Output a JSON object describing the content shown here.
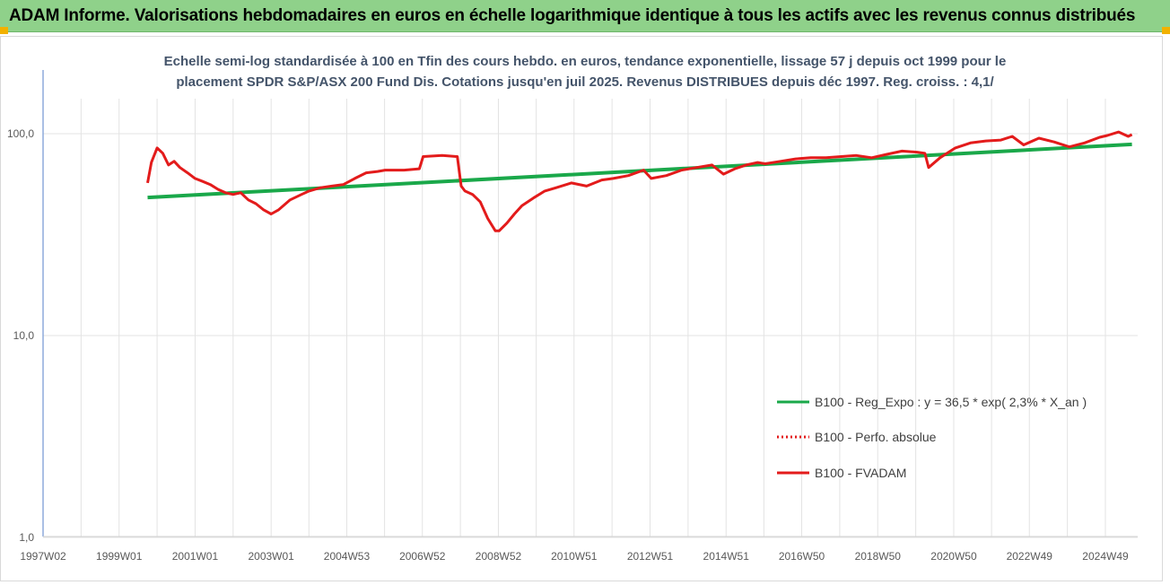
{
  "header": {
    "title": "ADAM Informe. Valorisations hebdomadaires en euros en échelle logarithmique identique à tous les actifs avec les revenus connus distribués"
  },
  "chart_data": {
    "type": "line",
    "title_lines": [
      "Echelle semi-log standardisée à 100 en Tfin des cours hebdo. en euros, tendance exponentielle, lissage 57 j depuis oct 1999 pour le",
      "placement SPDR S&P/ASX 200 Fund Dis. Cotations jusqu'en juil 2025. Revenus DISTRIBUES depuis déc 1997. Reg. croiss. : 4,1/"
    ],
    "y_scale": "log",
    "ylim": [
      1,
      200
    ],
    "y_ticks": [
      "1,0",
      "10,0",
      "100,0"
    ],
    "x_range": [
      1997.0,
      2025.8
    ],
    "x_ticks": [
      "1997W02",
      "1999W01",
      "2001W01",
      "2003W01",
      "2004W53",
      "2006W52",
      "2008W52",
      "2010W51",
      "2012W51",
      "2014W51",
      "2016W50",
      "2018W50",
      "2020W50",
      "2022W49",
      "2024W49"
    ],
    "x_tick_years": [
      1997.0,
      1999.0,
      2001.0,
      2003.0,
      2004.99,
      2006.98,
      2008.98,
      2010.97,
      2012.97,
      2014.97,
      2016.96,
      2018.96,
      2020.96,
      2022.95,
      2024.95
    ],
    "legend_position": "right",
    "grid": "vertical",
    "colors": {
      "trend": "#1aa84a",
      "perf": "#e31b1b",
      "fvadam": "#e31b1b",
      "axis": "#8eaadb"
    },
    "series": [
      {
        "name": "B100 - Reg_Expo : y = 36,5 * exp( 2,3% *  X_an )",
        "style": "solid-green",
        "x": [
          1999.75,
          2025.65
        ],
        "y": [
          48.3,
          88.5
        ]
      },
      {
        "name": "B100 - Perfo. absolue",
        "style": "dotted-red",
        "x": [],
        "y": []
      },
      {
        "name": "B100 - FVADAM",
        "style": "solid-red",
        "x": [
          1999.75,
          1999.85,
          2000.0,
          2000.15,
          2000.3,
          2000.45,
          2000.6,
          2000.8,
          2001.0,
          2001.2,
          2001.4,
          2001.6,
          2001.8,
          2002.0,
          2002.2,
          2002.4,
          2002.6,
          2002.8,
          2003.0,
          2003.2,
          2003.5,
          2003.8,
          2004.0,
          2004.3,
          2004.6,
          2004.9,
          2005.2,
          2005.5,
          2005.8,
          2006.0,
          2006.5,
          2006.9,
          2007.0,
          2007.5,
          2007.9,
          2008.0,
          2008.1,
          2008.3,
          2008.5,
          2008.7,
          2008.9,
          2009.0,
          2009.2,
          2009.4,
          2009.6,
          2009.9,
          2010.2,
          2010.5,
          2010.9,
          2011.3,
          2011.7,
          2012.0,
          2012.4,
          2012.8,
          2013.0,
          2013.4,
          2013.8,
          2014.2,
          2014.6,
          2014.9,
          2015.2,
          2015.5,
          2015.8,
          2016.0,
          2016.4,
          2016.8,
          2017.2,
          2017.6,
          2018.0,
          2018.4,
          2018.8,
          2019.2,
          2019.6,
          2020.0,
          2020.2,
          2020.3,
          2020.6,
          2021.0,
          2021.4,
          2021.8,
          2022.2,
          2022.5,
          2022.8,
          2023.2,
          2023.6,
          2024.0,
          2024.4,
          2024.8,
          2025.0,
          2025.3,
          2025.55,
          2025.65
        ],
        "y": [
          57,
          72,
          85,
          80,
          70,
          73,
          68,
          64,
          60,
          58,
          56,
          53,
          51,
          50,
          51,
          47,
          45,
          42,
          40,
          42,
          47,
          50,
          52,
          54,
          55,
          56,
          60,
          64,
          65,
          66,
          66,
          67,
          77,
          78,
          77,
          55,
          52,
          50,
          46,
          38,
          33,
          33,
          36,
          40,
          44,
          48,
          52,
          54,
          57,
          55,
          59,
          60,
          62,
          66,
          60,
          62,
          66,
          68,
          70,
          63,
          67,
          70,
          72,
          71,
          73,
          75,
          76,
          76,
          77,
          78,
          76,
          79,
          82,
          81,
          80,
          68,
          76,
          85,
          90,
          92,
          93,
          97,
          88,
          95,
          91,
          86,
          90,
          96,
          98,
          102,
          97,
          99
        ]
      }
    ]
  }
}
